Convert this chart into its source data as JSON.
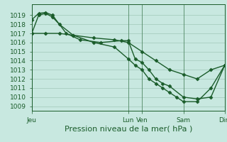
{
  "background_color": "#c8e8e0",
  "grid_color": "#a0c8b8",
  "line_color": "#1a5c2a",
  "marker": "D",
  "markersize": 2.5,
  "linewidth": 1.0,
  "xlabel": "Pression niveau de la mer( hPa )",
  "xlabel_fontsize": 8,
  "ylim": [
    1008.5,
    1020.2
  ],
  "yticks": [
    1009,
    1010,
    1011,
    1012,
    1013,
    1014,
    1015,
    1016,
    1017,
    1018,
    1019
  ],
  "tick_fontsize": 6.5,
  "xtick_labels": [
    "Jeu",
    "Lun",
    "Ven",
    "Sam",
    "Dim"
  ],
  "xtick_positions": [
    0,
    7,
    8,
    11,
    14
  ],
  "xlim": [
    0,
    14
  ],
  "vlines": [
    0,
    7,
    8,
    11,
    14
  ],
  "series": [
    {
      "x": [
        0,
        0.5,
        1.0,
        1.5,
        2.5,
        3.5,
        5.0,
        6.5,
        7.0,
        7.5,
        8.0,
        8.5,
        9.0,
        9.5,
        10.0,
        11.0,
        12.0,
        13.0,
        14.0
      ],
      "y": [
        1018.5,
        1019.2,
        1019.3,
        1019.0,
        1017.0,
        1016.3,
        1016.0,
        1016.2,
        1016.2,
        1014.2,
        1013.8,
        1013.0,
        1012.0,
        1011.5,
        1011.2,
        1010.0,
        1009.8,
        1010.0,
        1013.5
      ]
    },
    {
      "x": [
        0,
        0.5,
        1.0,
        1.5,
        2.0,
        3.0,
        4.5,
        6.0,
        7.0,
        7.5,
        8.0,
        8.5,
        9.0,
        9.5,
        10.0,
        10.5,
        11.0,
        12.0,
        13.0,
        14.0
      ],
      "y": [
        1017.0,
        1019.0,
        1019.2,
        1018.8,
        1018.0,
        1016.8,
        1016.0,
        1015.5,
        1014.2,
        1013.5,
        1013.0,
        1012.0,
        1011.5,
        1011.0,
        1010.5,
        1010.0,
        1009.5,
        1009.5,
        1011.0,
        1013.5
      ]
    },
    {
      "x": [
        0,
        1.0,
        2.0,
        3.0,
        4.5,
        6.0,
        7.0,
        8.0,
        9.0,
        10.0,
        11.0,
        12.0,
        13.0,
        14.0
      ],
      "y": [
        1017.0,
        1017.0,
        1017.0,
        1016.8,
        1016.5,
        1016.3,
        1016.0,
        1015.0,
        1014.0,
        1013.0,
        1012.5,
        1012.0,
        1013.0,
        1013.5
      ]
    }
  ]
}
